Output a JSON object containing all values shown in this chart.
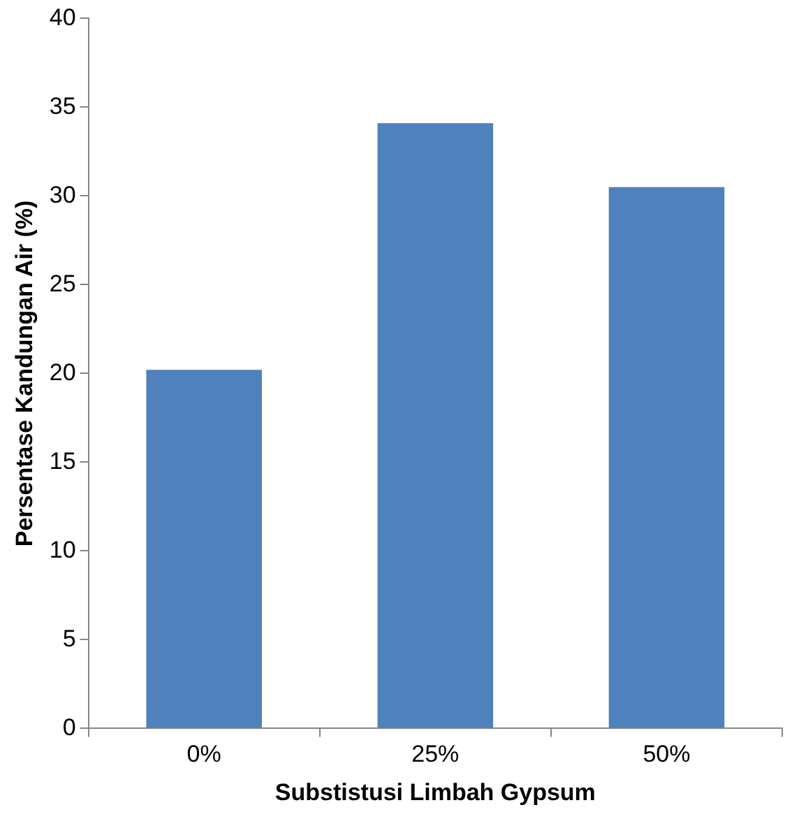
{
  "chart_data": {
    "type": "bar",
    "xlabel": "Substistusi Limbah Gypsum",
    "ylabel": "Persentase Kandungan Air (%)",
    "categories": [
      "0%",
      "25%",
      "50%"
    ],
    "values": [
      20.2,
      34.1,
      30.5
    ],
    "color": "#4f81bd",
    "ylim": [
      0,
      40
    ],
    "yticks": [
      0,
      5,
      10,
      15,
      20,
      25,
      30,
      35,
      40
    ],
    "grid": false,
    "legend": false
  }
}
